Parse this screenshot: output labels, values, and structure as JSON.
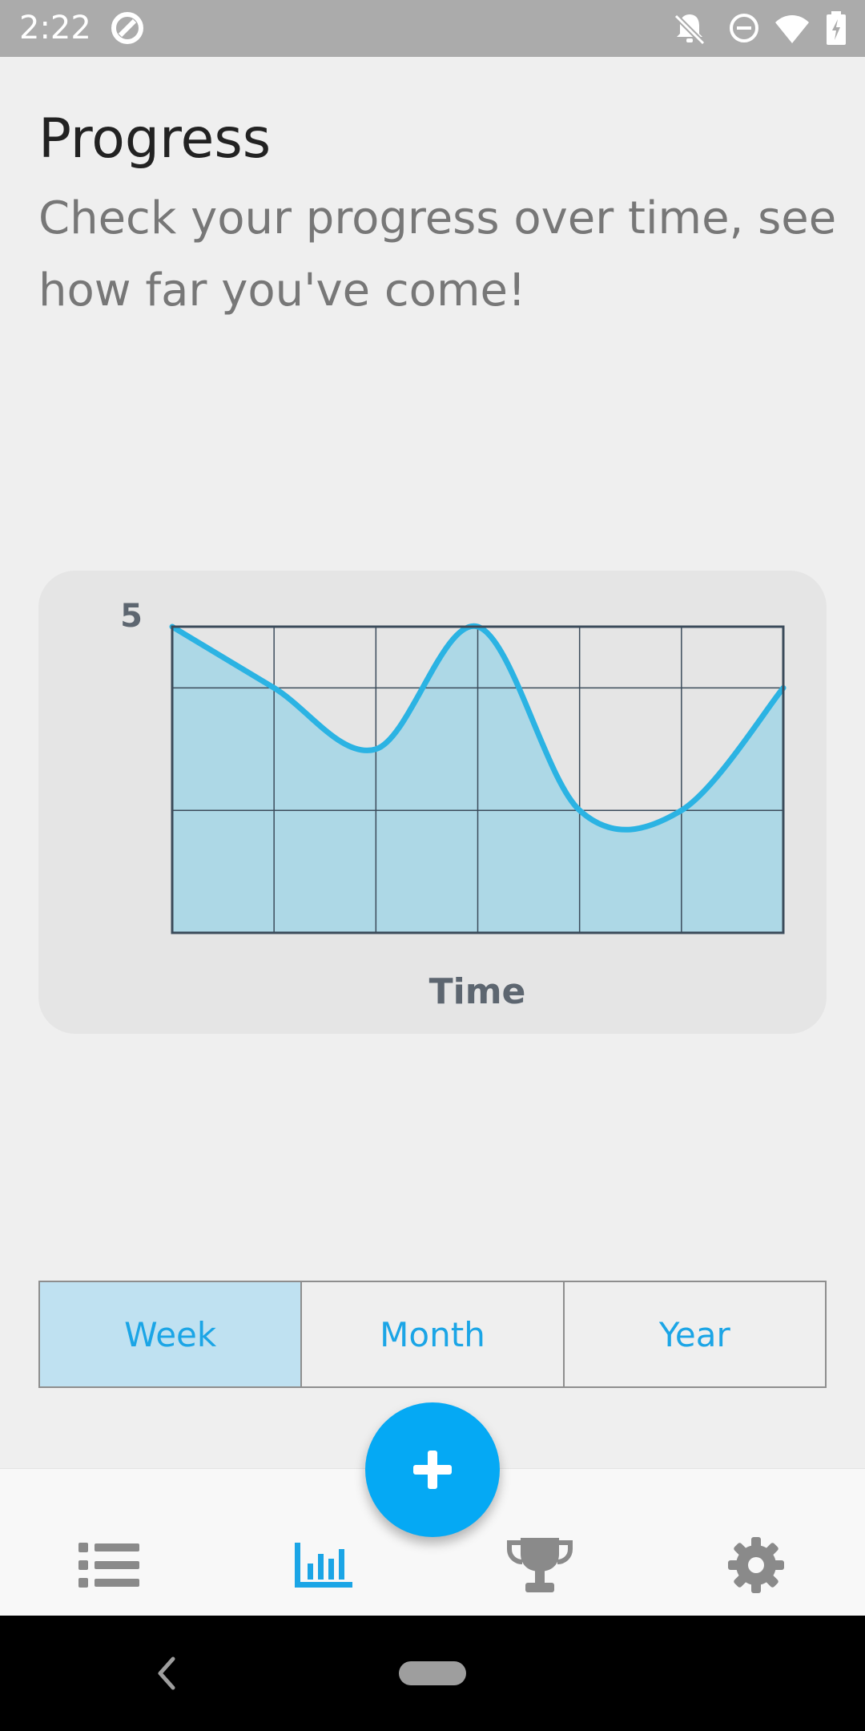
{
  "status_bar": {
    "time": "2:22",
    "icons": [
      "sync-icon",
      "notifications-off-icon",
      "do-not-disturb-icon",
      "wifi-icon",
      "battery-charging-icon"
    ]
  },
  "header": {
    "title": "Progress",
    "subtitle": "Check your progress over time, see how far you've come!"
  },
  "chart_data": {
    "type": "area",
    "title": "",
    "xlabel": "Time",
    "ylabel": "",
    "y_tick_labels": [
      "5"
    ],
    "ylim": [
      0,
      5
    ],
    "x": [
      0,
      1,
      2,
      3,
      4,
      5,
      6
    ],
    "values": [
      5,
      4,
      3,
      5,
      2,
      2,
      4
    ],
    "grid": true,
    "legend": "none",
    "colors": {
      "line": "#2bb3e3",
      "fill": "#add8e6",
      "grid": "#3b4b5a",
      "text": "#5d6670"
    }
  },
  "range_selector": {
    "options": [
      "Week",
      "Month",
      "Year"
    ],
    "selected": "Week"
  },
  "bottom_nav": {
    "items": [
      "list-icon",
      "chart-icon",
      "trophy-icon",
      "settings-icon"
    ],
    "active": "chart-icon",
    "fab_icon": "add-icon"
  },
  "colors": {
    "accent": "#05a9f4",
    "active_segment": "#bfe1f1",
    "nav_inactive": "#8a8a8a"
  }
}
